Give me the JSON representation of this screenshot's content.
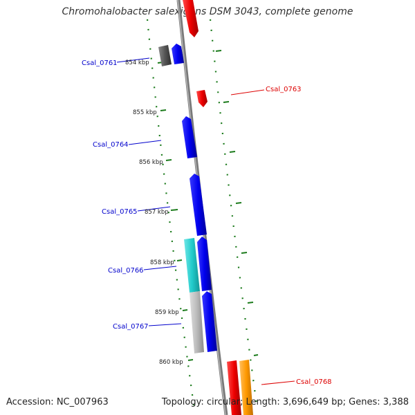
{
  "header": {
    "title": "Chromohalobacter salexigens DSM 3043, complete genome"
  },
  "footer": {
    "accession": "Accession: NC_007963",
    "summary": "Topology: circular; Length: 3,696,649 bp; Genes: 3,388"
  },
  "ruler": {
    "ticks": [
      "854 kbp",
      "855 kbp",
      "856 kbp",
      "857 kbp",
      "858 kbp",
      "859 kbp",
      "860 kbp"
    ]
  },
  "genes": [
    {
      "label": "Csal_0761",
      "label_color": "#0000cc"
    },
    {
      "label": "Csal_0763",
      "label_color": "#dd0000"
    },
    {
      "label": "Csal_0764",
      "label_color": "#0000cc"
    },
    {
      "label": "Csal_0765",
      "label_color": "#0000cc"
    },
    {
      "label": "Csal_0766",
      "label_color": "#0000cc"
    },
    {
      "label": "Csal_0767",
      "label_color": "#0000cc"
    },
    {
      "label": "Csal_0768",
      "label_color": "#dd0000"
    }
  ],
  "colors": {
    "backbone": "#8c8c8c",
    "dots": "#1a7a1a",
    "reverse_strand": "#0000ee",
    "forward_strand": "#ee0000",
    "cyan_feature": "#22cccc",
    "grey_feature": "#bbbbbb",
    "dark_feature": "#555555",
    "orange_feature": "#ff9900"
  }
}
